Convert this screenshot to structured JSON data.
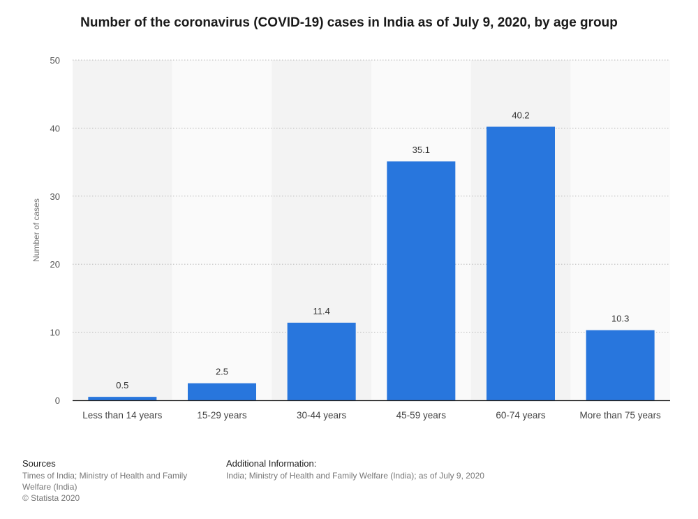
{
  "chart_data": {
    "type": "bar",
    "title": "Number of the coronavirus (COVID-19) cases in India as of July 9, 2020, by age group",
    "ylabel": "Number of cases",
    "xlabel": "",
    "categories": [
      "Less than 14 years",
      "15-29 years",
      "30-44 years",
      "45-59 years",
      "60-74 years",
      "More than 75 years"
    ],
    "values": [
      0.5,
      2.5,
      11.4,
      35.1,
      40.2,
      10.3
    ],
    "value_labels": [
      "0.5",
      "2.5",
      "11.4",
      "35.1",
      "40.2",
      "10.3"
    ],
    "ylim": [
      0,
      50
    ],
    "yticks": [
      0,
      10,
      20,
      30,
      40,
      50
    ],
    "grid": true,
    "bar_color": "#2876dd"
  },
  "footer": {
    "sources_heading": "Sources",
    "sources_line1": "Times of India; Ministry of Health and Family",
    "sources_line2": "Welfare (India)",
    "copyright": "© Statista 2020",
    "additional_heading": "Additional Information:",
    "additional_text": "India; Ministry of Health and Family Welfare (India); as of July 9, 2020"
  }
}
